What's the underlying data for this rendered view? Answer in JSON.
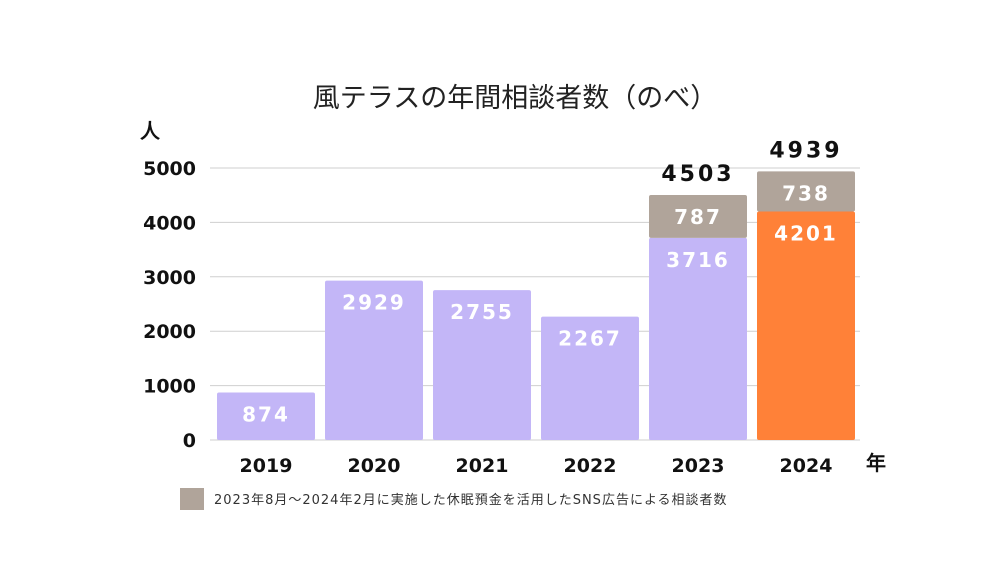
{
  "chart_data": {
    "type": "bar",
    "stacked": true,
    "title": "風テラスの年間相談者数（のべ）",
    "ylabel": "人",
    "xlabel": "年",
    "categories": [
      "2019",
      "2020",
      "2021",
      "2022",
      "2023",
      "2024"
    ],
    "series": [
      {
        "values": [
          874,
          2929,
          2755,
          2267,
          3716,
          4201
        ],
        "colors": [
          "#c3b6f7",
          "#c3b6f7",
          "#c3b6f7",
          "#c3b6f7",
          "#c3b6f7",
          "#ff8138"
        ]
      },
      {
        "name": "2023年8月〜2024年2月に実施した休眠預金を活用したSNS広告による相談者数",
        "values": [
          null,
          null,
          null,
          null,
          787,
          738
        ],
        "color": "#b0a49a"
      }
    ],
    "totals": [
      null,
      null,
      null,
      null,
      4503,
      4939
    ],
    "yticks": [
      0,
      1000,
      2000,
      3000,
      4000,
      5000
    ],
    "ylim": [
      0,
      5000
    ],
    "grid": true,
    "legend": "bottom"
  }
}
